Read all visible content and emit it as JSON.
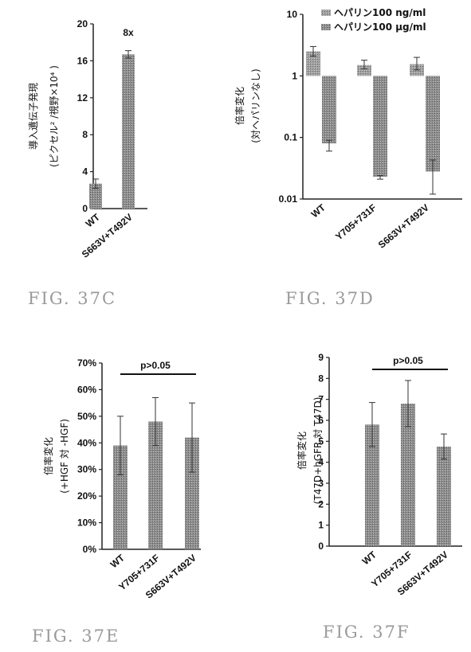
{
  "colors": {
    "bar": "#8e8e8e",
    "bar_light": "#a2a2a2",
    "axis": "#222222",
    "figure_label": "#9a9a9a"
  },
  "chart_data": [
    {
      "id": "c",
      "type": "bar",
      "figure_label": "FIG. 37C",
      "ylabel": [
        "導入遺伝子発現",
        "(ピクセル² /視野×10⁴ )"
      ],
      "categories": [
        "WT",
        "S663V+T492V"
      ],
      "series": [
        {
          "values": [
            2.7,
            16.7
          ],
          "errors": [
            0.5,
            0.4
          ]
        }
      ],
      "yticks": [
        "20",
        "16",
        "12",
        "8",
        "4",
        "0"
      ],
      "ylim": [
        0,
        20
      ],
      "annotation": "8x",
      "grid": false
    },
    {
      "id": "d",
      "type": "bar",
      "figure_label": "FIG. 37D",
      "ylabel": [
        "倍率変化",
        "(対ヘパリンなし)"
      ],
      "categories": [
        "WT",
        "Y705+731F",
        "S663V+T492V"
      ],
      "legend": [
        "ヘパリン100 ng/ml",
        "ヘパリン100 µg/ml"
      ],
      "series": [
        {
          "name": "ヘパリン100 ng/ml",
          "values": [
            2.5,
            1.5,
            1.55
          ],
          "err_high": [
            3.0,
            1.8,
            2.0
          ],
          "err_low": [
            2.1,
            1.3,
            1.25
          ]
        },
        {
          "name": "ヘパリン100 µg/ml",
          "values": [
            0.08,
            0.023,
            0.028
          ],
          "err_high": [
            0.09,
            0.024,
            0.043
          ],
          "err_low": [
            0.06,
            0.021,
            0.012
          ]
        }
      ],
      "yticks": [
        "10",
        "1",
        "0.1",
        "0.01"
      ],
      "ylim": [
        0.01,
        10
      ],
      "yscale": "log",
      "baseline": 1,
      "legend_position": "top-right",
      "grid": false
    },
    {
      "id": "e",
      "type": "bar",
      "figure_label": "FIG. 37E",
      "ylabel": [
        "倍率変化",
        "(+HGF 対 -HGF)"
      ],
      "categories": [
        "WT",
        "Y705+731F",
        "S663V+T492V"
      ],
      "series": [
        {
          "values": [
            39,
            48,
            42
          ],
          "errors": [
            11,
            9,
            13
          ]
        }
      ],
      "yticks": [
        "70%",
        "60%",
        "50%",
        "40%",
        "30%",
        "20%",
        "10%",
        "0%"
      ],
      "ylim": [
        0,
        70
      ],
      "annotation": "p>0.05",
      "grid": false
    },
    {
      "id": "f",
      "type": "bar",
      "figure_label": "FIG. 37F",
      "ylabel": [
        "倍率変化",
        "(T47D+hGFR 対 T47D)"
      ],
      "categories": [
        "WT",
        "Y705+731F",
        "S663V+T492V"
      ],
      "series": [
        {
          "values": [
            5.8,
            6.8,
            4.75
          ],
          "errors": [
            1.05,
            1.1,
            0.6
          ]
        }
      ],
      "yticks": [
        "9",
        "8",
        "7",
        "6",
        "5",
        "4",
        "3",
        "2",
        "1",
        "0"
      ],
      "ylim": [
        0,
        9
      ],
      "annotation": "p>0.05",
      "grid": false
    }
  ]
}
